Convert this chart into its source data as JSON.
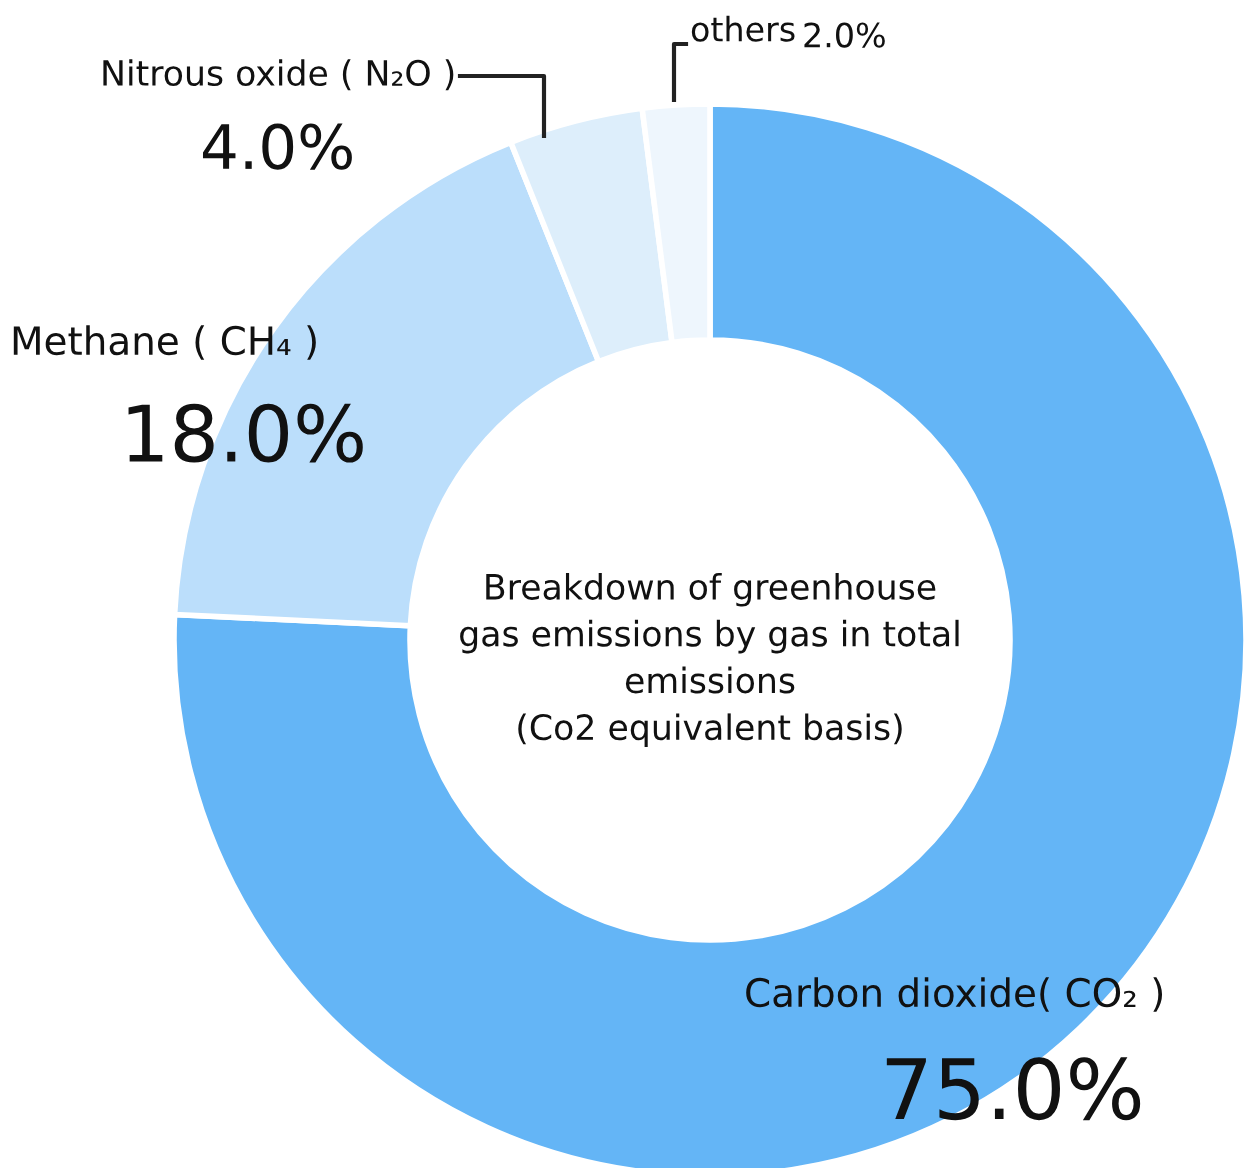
{
  "chart_data": {
    "type": "donut",
    "categories": [
      "Carbon dioxide( CO₂ )",
      "Methane ( CH₄ )",
      "Nitrous oxide ( N₂O )",
      "others"
    ],
    "values": [
      75.0,
      18.0,
      4.0,
      2.0
    ],
    "value_labels": [
      "75.0%",
      "18.0%",
      "4.0%",
      "2.0%"
    ],
    "colors": [
      "#64b5f6",
      "#bbdefb",
      "#ddeefb",
      "#eef6fd"
    ],
    "annotations": [
      "Breakdown of greenhouse\ngas emissions by gas in total\nemissions\n(Co2 equivalent basis)"
    ],
    "legend": false
  }
}
